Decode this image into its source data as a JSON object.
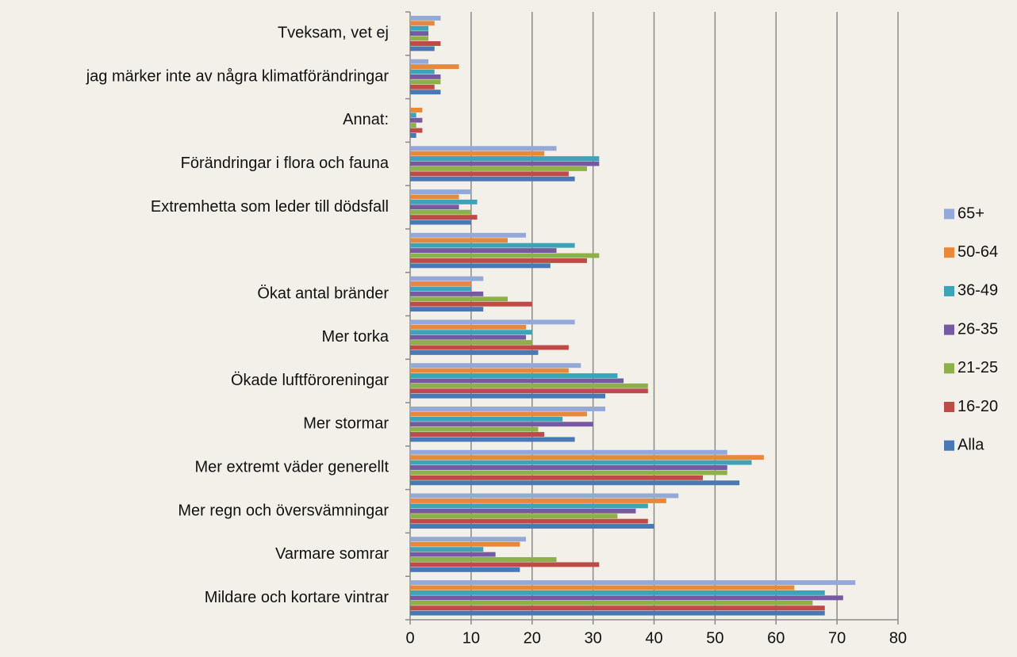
{
  "chart_data": {
    "type": "barh",
    "categories": [
      "Mildare och kortare vintrar",
      "Varmare somrar",
      "Mer regn och översvämningar",
      "Mer extremt väder generellt",
      "Mer stormar",
      "Ökade luftföroreningar",
      "Mer torka",
      "Ökat antal bränder",
      null,
      "Extremhetta som leder till dödsfall",
      "Förändringar i flora och fauna",
      "Annat:",
      "jag märker inte av några klimatförändringar",
      "Tveksam, vet ej"
    ],
    "series": [
      {
        "name": "65+",
        "color": "#95a9d8",
        "values": [
          73,
          19,
          44,
          52,
          32,
          28,
          27,
          12,
          19,
          10,
          24,
          0,
          3,
          5
        ]
      },
      {
        "name": "50-64",
        "color": "#e8883a",
        "values": [
          63,
          18,
          42,
          58,
          29,
          26,
          19,
          10,
          16,
          8,
          22,
          2,
          8,
          4
        ]
      },
      {
        "name": "36-49",
        "color": "#3ca3b8",
        "values": [
          68,
          12,
          39,
          56,
          25,
          34,
          20,
          10,
          27,
          11,
          31,
          1,
          4,
          3
        ]
      },
      {
        "name": "26-35",
        "color": "#7659a0",
        "values": [
          71,
          14,
          37,
          52,
          30,
          35,
          19,
          12,
          24,
          8,
          31,
          2,
          5,
          3
        ]
      },
      {
        "name": "21-25",
        "color": "#8db04b",
        "values": [
          66,
          24,
          34,
          52,
          21,
          39,
          20,
          16,
          31,
          10,
          29,
          1,
          5,
          3
        ]
      },
      {
        "name": "16-20",
        "color": "#bf4b48",
        "values": [
          68,
          31,
          39,
          48,
          22,
          39,
          26,
          20,
          29,
          11,
          26,
          2,
          4,
          5
        ]
      },
      {
        "name": "Alla",
        "color": "#4a78b5",
        "values": [
          68,
          18,
          40,
          54,
          27,
          32,
          21,
          12,
          23,
          10,
          27,
          1,
          5,
          4
        ]
      }
    ],
    "xlim": [
      0,
      80
    ],
    "xticks": [
      0,
      10,
      20,
      30,
      40,
      50,
      60,
      70,
      80
    ],
    "grid": true,
    "legend": "right"
  }
}
